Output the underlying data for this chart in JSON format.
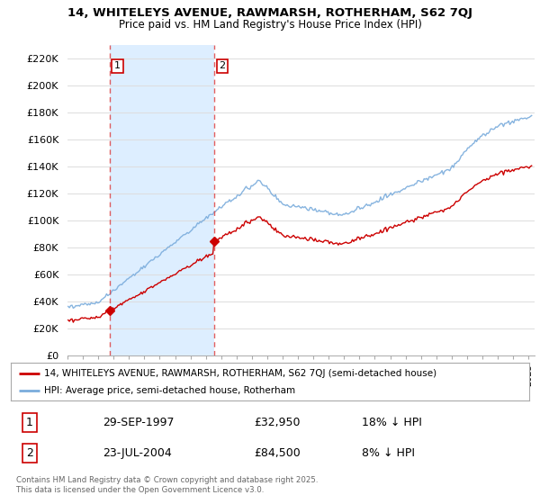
{
  "title1": "14, WHITELEYS AVENUE, RAWMARSH, ROTHERHAM, S62 7QJ",
  "title2": "Price paid vs. HM Land Registry's House Price Index (HPI)",
  "ylabel_ticks": [
    "£0",
    "£20K",
    "£40K",
    "£60K",
    "£80K",
    "£100K",
    "£120K",
    "£140K",
    "£160K",
    "£180K",
    "£200K",
    "£220K"
  ],
  "ytick_vals": [
    0,
    20000,
    40000,
    60000,
    80000,
    100000,
    120000,
    140000,
    160000,
    180000,
    200000,
    220000
  ],
  "ylim": [
    0,
    230000
  ],
  "sale1_date": "29-SEP-1997",
  "sale1_price": 32950,
  "sale1_hpi": "18% ↓ HPI",
  "sale1_year": 1997.75,
  "sale2_date": "23-JUL-2004",
  "sale2_price": 84500,
  "sale2_hpi": "8% ↓ HPI",
  "sale2_year": 2004.56,
  "legend1": "14, WHITELEYS AVENUE, RAWMARSH, ROTHERHAM, S62 7QJ (semi-detached house)",
  "legend2": "HPI: Average price, semi-detached house, Rotherham",
  "footer": "Contains HM Land Registry data © Crown copyright and database right 2025.\nThis data is licensed under the Open Government Licence v3.0.",
  "sale_color": "#cc0000",
  "hpi_color": "#7aacdc",
  "vline_color": "#dd4444",
  "shade_color": "#ddeeff",
  "background": "#ffffff",
  "grid_color": "#dddddd"
}
